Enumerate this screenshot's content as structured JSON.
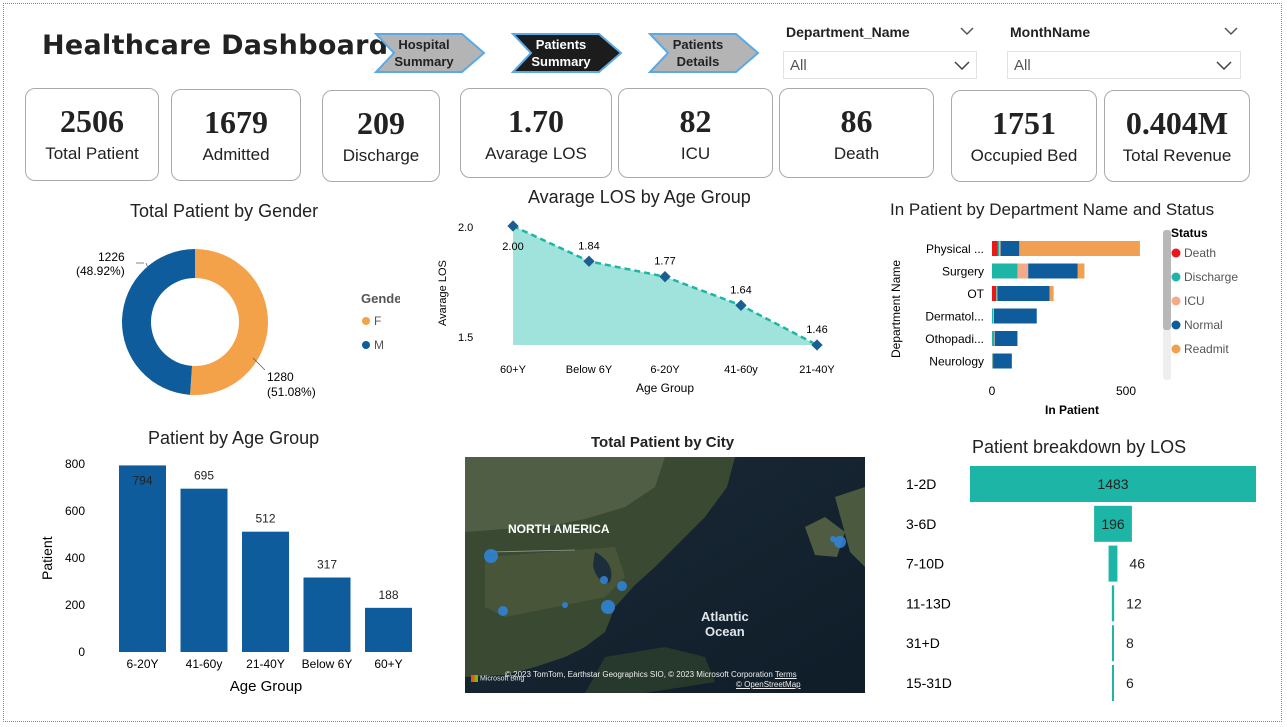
{
  "header": {
    "title": "Healthcare Dashboard"
  },
  "nav": [
    {
      "line1": "Hospital",
      "line2": "Summary",
      "active": false
    },
    {
      "line1": "Patients",
      "line2": "Summary",
      "active": true
    },
    {
      "line1": "Patients",
      "line2": "Details",
      "active": false
    }
  ],
  "filters": {
    "department": {
      "label": "Department_Name",
      "value": "All"
    },
    "month": {
      "label": "MonthName",
      "value": "All"
    }
  },
  "kpis": [
    {
      "value": "2506",
      "label": "Total Patient"
    },
    {
      "value": "1679",
      "label": "Admitted"
    },
    {
      "value": "209",
      "label": "Discharge"
    },
    {
      "value": "1.70",
      "label": "Avarage LOS"
    },
    {
      "value": "82",
      "label": "ICU"
    },
    {
      "value": "86",
      "label": "Death"
    },
    {
      "value": "1751",
      "label": "Occupied Bed"
    },
    {
      "value": "0.404M",
      "label": "Total Revenue"
    }
  ],
  "colors": {
    "female": "#F4A24A",
    "male": "#0F5C9C",
    "teal": "#1DB5A5",
    "death": "#E8191B",
    "icu": "#F4A98A",
    "readmit": "#F0A050",
    "area": "#9FE3DC"
  },
  "gender_chart": {
    "title": "Total Patient by Gender",
    "legend_title": "Gender",
    "legend": [
      "F",
      "M"
    ],
    "chart_data": {
      "type": "pie",
      "slices": [
        {
          "name": "F",
          "value": 1280,
          "label": "1280",
          "pct": "(51.08%)"
        },
        {
          "name": "M",
          "value": 1226,
          "label": "1226",
          "pct": "(48.92%)"
        }
      ]
    }
  },
  "los_age_chart": {
    "title": "Avarage LOS by Age Group",
    "xlabel": "Age Group",
    "ylabel": "Avarage LOS",
    "yticks": [
      "2.0",
      "1.5"
    ],
    "chart_data": {
      "type": "area",
      "categories": [
        "60+Y",
        "Below 6Y",
        "6-20Y",
        "41-60y",
        "21-40Y"
      ],
      "values": [
        2.0,
        1.84,
        1.77,
        1.64,
        1.46
      ],
      "labels": [
        "2.00",
        "1.84",
        "1.77",
        "1.64",
        "1.46"
      ],
      "ylim": [
        1.46,
        2.0
      ]
    }
  },
  "dept_chart": {
    "title": "In Patient by Department Name and Status",
    "xlabel": "In Patient",
    "ylabel": "Department Name",
    "xticks": [
      "0",
      "500"
    ],
    "legend_title": "Status",
    "legend": [
      "Death",
      "Discharge",
      "ICU",
      "Normal",
      "Readmit"
    ],
    "chart_data": {
      "type": "bar",
      "categories": [
        "Physical ...",
        "Surgery",
        "OT",
        "Dermatol...",
        "Othopadi...",
        "Neurology"
      ],
      "series": [
        {
          "name": "Death",
          "values": [
            22,
            0,
            15,
            0,
            0,
            0
          ]
        },
        {
          "name": "Discharge",
          "values": [
            5,
            95,
            2,
            4,
            8,
            2
          ]
        },
        {
          "name": "ICU",
          "values": [
            5,
            40,
            3,
            3,
            2,
            2
          ]
        },
        {
          "name": "Normal",
          "values": [
            70,
            185,
            195,
            160,
            85,
            70
          ]
        },
        {
          "name": "Readmit",
          "values": [
            450,
            25,
            15,
            0,
            0,
            0
          ]
        }
      ],
      "xlim": [
        0,
        600
      ]
    }
  },
  "age_chart": {
    "title": "Patient by Age Group",
    "xlabel": "Age Group",
    "ylabel": "Patient",
    "yticks": [
      "800",
      "600",
      "400",
      "200",
      "0"
    ],
    "chart_data": {
      "type": "bar",
      "categories": [
        "6-20Y",
        "41-60y",
        "21-40Y",
        "Below 6Y",
        "60+Y"
      ],
      "values": [
        794,
        695,
        512,
        317,
        188
      ],
      "ylim": [
        0,
        800
      ]
    }
  },
  "map": {
    "title": "Total Patient by City",
    "region_label": "NORTH AMERICA",
    "ocean_line1": "Atlantic",
    "ocean_line2": "Ocean",
    "attribution": "© 2023 TomTom, Earthstar Geographics SIO, © 2023 Microsoft Corporation",
    "terms": "Terms",
    "osm": "© OpenStreetMap",
    "brand": "Microsoft Bing"
  },
  "los_breakdown": {
    "title": "Patient breakdown by LOS",
    "chart_data": {
      "type": "bar",
      "categories": [
        "1-2D",
        "3-6D",
        "7-10D",
        "11-13D",
        "31+D",
        "15-31D"
      ],
      "values": [
        1483,
        196,
        46,
        12,
        8,
        6
      ],
      "labels": [
        "1483",
        "196",
        "46",
        "12",
        "8",
        "6"
      ]
    }
  }
}
